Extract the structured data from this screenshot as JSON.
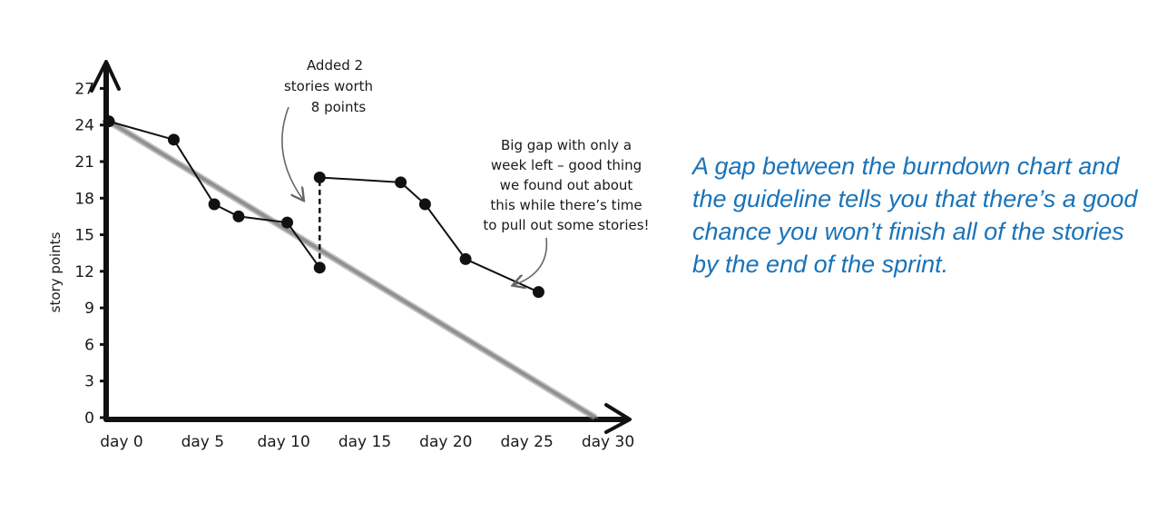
{
  "chart_data": {
    "type": "line",
    "ylabel": "story points",
    "xlabel": "",
    "y_ticks": [
      "0",
      "3",
      "6",
      "9",
      "12",
      "15",
      "18",
      "21",
      "24",
      "27"
    ],
    "x_ticks": [
      "day 0",
      "day 5",
      "day 10",
      "day 15",
      "day 20",
      "day 25",
      "day 30"
    ],
    "ylim": [
      0,
      28
    ],
    "xlim": [
      0,
      30
    ],
    "series": [
      {
        "x": [
          0,
          4,
          6.5,
          8,
          11,
          13,
          13,
          18,
          19.5,
          22,
          26.5
        ],
        "y": [
          24.3,
          22.8,
          17.5,
          16.5,
          16,
          12.3,
          19.7,
          19.3,
          17.5,
          13,
          10.3
        ],
        "color": "#111111"
      }
    ],
    "guideline": {
      "x": [
        0,
        30
      ],
      "y": [
        24.3,
        0
      ],
      "color": "#8a8a8a"
    },
    "annotations": [
      {
        "lines": [
          "Added 2",
          "stories worth",
          "8 points"
        ]
      },
      {
        "lines": [
          "Big gap with only a",
          "week left – good thing",
          "we found out about",
          "this while there’s time",
          "to pull out some stories!"
        ]
      }
    ]
  },
  "caption": "A gap between the burndown chart and the guideline tells you that there’s a good chance you won’t finish all of the stories by the end of the sprint."
}
